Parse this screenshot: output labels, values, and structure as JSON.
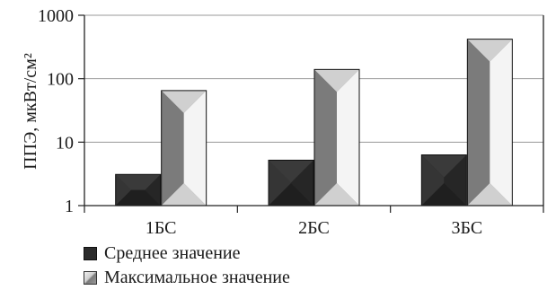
{
  "chart_data": {
    "type": "bar",
    "ylabel": "ППЭ, мкВт/см²",
    "yscale": "log",
    "ylim": [
      1,
      1000
    ],
    "yticks": [
      "1",
      "10",
      "100",
      "1000"
    ],
    "categories": [
      "1БС",
      "2БС",
      "3БС"
    ],
    "series": [
      {
        "name": "Среднее значение",
        "values": [
          3.1,
          5.2,
          6.3
        ]
      },
      {
        "name": "Максимальное значение",
        "values": [
          65,
          140,
          420
        ]
      }
    ],
    "grid": true,
    "legend_position": "bottom-left"
  },
  "colors": {
    "avg_dark": "#2b2b2b",
    "avg_light": "#4a4a4a",
    "max_side": "#8a8a8a",
    "max_light": "#d0d0d0",
    "axis": "#222222",
    "grid": "#999999"
  }
}
